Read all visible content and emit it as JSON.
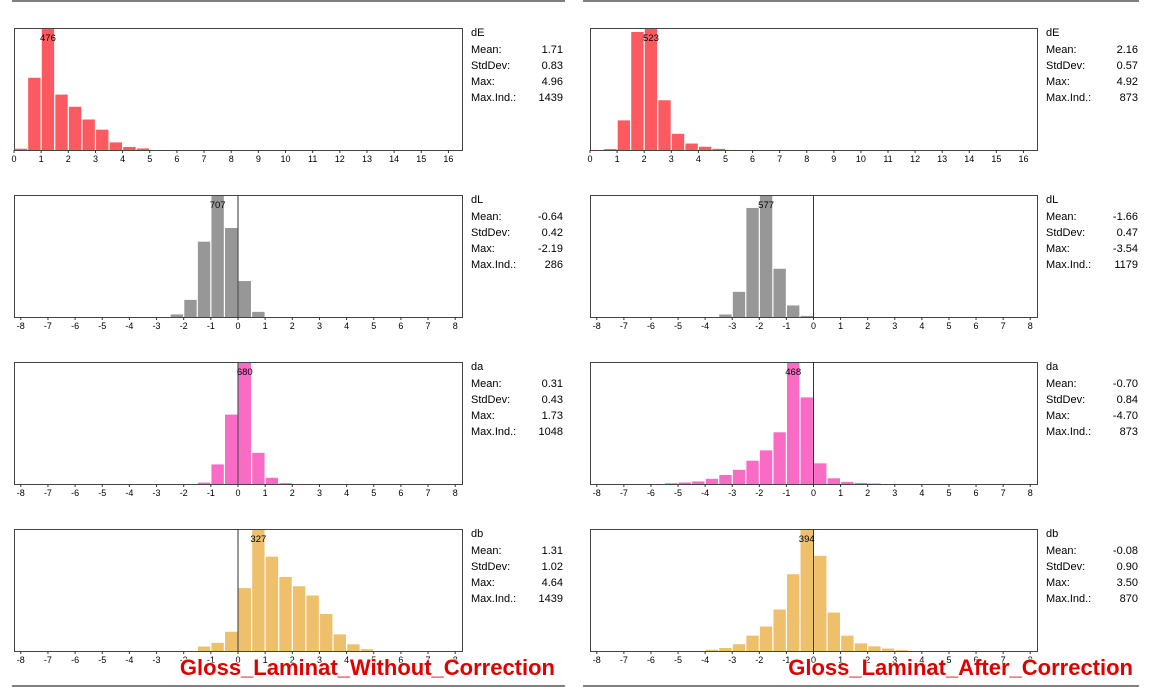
{
  "captions": {
    "left": "Gloss_Laminat_Without_Correction",
    "right": "Gloss_Laminat_After_Correction"
  },
  "colors": {
    "dE": "#fc5a60",
    "dL": "#979797",
    "da": "#f96bc4",
    "db": "#eec06c",
    "frame": "#444444",
    "text": "#000000",
    "caption": "#e00000"
  },
  "stat_labels": [
    "Mean:",
    "StdDev:",
    "Max:",
    "Max.Ind.:"
  ],
  "chart_data": [
    {
      "type": "bar",
      "panel": "left",
      "title": "dE",
      "stats": {
        "Mean": "1.71",
        "StdDev": "0.83",
        "Max": "4.96",
        "Max.Ind.": "1439"
      },
      "peak_label": "476",
      "xlim": [
        0,
        16.5
      ],
      "xticks": [
        0,
        1,
        2,
        3,
        4,
        5,
        6,
        7,
        8,
        9,
        10,
        11,
        12,
        13,
        14,
        15,
        16
      ],
      "ylim": [
        0,
        476
      ],
      "bin_width": 0.5,
      "zero_line": false,
      "x": [
        0.25,
        0.75,
        1.25,
        1.75,
        2.25,
        2.75,
        3.25,
        3.75,
        4.25,
        4.75
      ],
      "values": [
        5,
        284,
        476,
        218,
        170,
        120,
        80,
        30,
        12,
        6
      ]
    },
    {
      "type": "bar",
      "panel": "right",
      "title": "dE",
      "stats": {
        "Mean": "2.16",
        "StdDev": "0.57",
        "Max": "4.92",
        "Max.Ind.": "873"
      },
      "peak_label": "523",
      "xlim": [
        0,
        16.5
      ],
      "xticks": [
        0,
        1,
        2,
        3,
        4,
        5,
        6,
        7,
        8,
        9,
        10,
        11,
        12,
        13,
        14,
        15,
        16
      ],
      "ylim": [
        0,
        523
      ],
      "bin_width": 0.5,
      "zero_line": false,
      "x": [
        0.75,
        1.25,
        1.75,
        2.25,
        2.75,
        3.25,
        3.75,
        4.25,
        4.75
      ],
      "values": [
        4,
        128,
        510,
        523,
        215,
        70,
        28,
        14,
        5
      ]
    },
    {
      "type": "bar",
      "panel": "left",
      "title": "dL",
      "stats": {
        "Mean": "-0.64",
        "StdDev": "0.42",
        "Max": "-2.19",
        "Max.Ind.": "286"
      },
      "peak_label": "707",
      "xlim": [
        -8.25,
        8.25
      ],
      "xticks": [
        -8,
        -7,
        -6,
        -5,
        -4,
        -3,
        -2,
        -1,
        0,
        1,
        2,
        3,
        4,
        5,
        6,
        7,
        8
      ],
      "ylim": [
        0,
        707
      ],
      "bin_width": 0.5,
      "zero_line": true,
      "x": [
        -2.25,
        -1.75,
        -1.25,
        -0.75,
        -0.25,
        0.25,
        0.75
      ],
      "values": [
        15,
        100,
        440,
        707,
        520,
        210,
        30
      ]
    },
    {
      "type": "bar",
      "panel": "right",
      "title": "dL",
      "stats": {
        "Mean": "-1.66",
        "StdDev": "0.47",
        "Max": "-3.54",
        "Max.Ind.": "1179"
      },
      "peak_label": "577",
      "xlim": [
        -8.25,
        8.25
      ],
      "xticks": [
        -8,
        -7,
        -6,
        -5,
        -4,
        -3,
        -2,
        -1,
        0,
        1,
        2,
        3,
        4,
        5,
        6,
        7,
        8
      ],
      "ylim": [
        0,
        577
      ],
      "bin_width": 0.5,
      "zero_line": true,
      "x": [
        -3.25,
        -2.75,
        -2.25,
        -1.75,
        -1.25,
        -0.75,
        -0.25
      ],
      "values": [
        12,
        120,
        520,
        577,
        230,
        55,
        5
      ]
    },
    {
      "type": "bar",
      "panel": "left",
      "title": "da",
      "stats": {
        "Mean": "0.31",
        "StdDev": "0.43",
        "Max": "1.73",
        "Max.Ind.": "1048"
      },
      "peak_label": "680",
      "xlim": [
        -8.25,
        8.25
      ],
      "xticks": [
        -8,
        -7,
        -6,
        -5,
        -4,
        -3,
        -2,
        -1,
        0,
        1,
        2,
        3,
        4,
        5,
        6,
        7,
        8
      ],
      "ylim": [
        0,
        680
      ],
      "bin_width": 0.5,
      "zero_line": true,
      "x": [
        -1.25,
        -0.75,
        -0.25,
        0.25,
        0.75,
        1.25,
        1.75
      ],
      "values": [
        8,
        110,
        390,
        680,
        175,
        35,
        5
      ]
    },
    {
      "type": "bar",
      "panel": "right",
      "title": "da",
      "stats": {
        "Mean": "-0.70",
        "StdDev": "0.84",
        "Max": "-4.70",
        "Max.Ind.": "873"
      },
      "peak_label": "468",
      "xlim": [
        -8.25,
        8.25
      ],
      "xticks": [
        -8,
        -7,
        -6,
        -5,
        -4,
        -3,
        -2,
        -1,
        0,
        1,
        2,
        3,
        4,
        5,
        6,
        7,
        8
      ],
      "ylim": [
        0,
        468
      ],
      "bin_width": 0.5,
      "zero_line": true,
      "x": [
        -5.25,
        -4.75,
        -4.25,
        -3.75,
        -3.25,
        -2.75,
        -2.25,
        -1.75,
        -1.25,
        -0.75,
        -0.25,
        0.25,
        0.75,
        1.25,
        1.75,
        2.25
      ],
      "values": [
        3,
        6,
        10,
        20,
        35,
        55,
        90,
        130,
        200,
        468,
        335,
        80,
        22,
        8,
        4,
        2
      ]
    },
    {
      "type": "bar",
      "panel": "left",
      "title": "db",
      "stats": {
        "Mean": "1.31",
        "StdDev": "1.02",
        "Max": "4.64",
        "Max.Ind.": "1439"
      },
      "peak_label": "327",
      "xlim": [
        -8.25,
        8.25
      ],
      "xticks": [
        -8,
        -7,
        -6,
        -5,
        -4,
        -3,
        -2,
        -1,
        0,
        1,
        2,
        3,
        4,
        5,
        6,
        7,
        8
      ],
      "ylim": [
        0,
        327
      ],
      "bin_width": 0.5,
      "zero_line": true,
      "x": [
        -1.25,
        -0.75,
        -0.25,
        0.25,
        0.75,
        1.25,
        1.75,
        2.25,
        2.75,
        3.25,
        3.75,
        4.25,
        4.75
      ],
      "values": [
        12,
        22,
        52,
        170,
        327,
        255,
        200,
        175,
        150,
        100,
        45,
        18,
        5
      ]
    },
    {
      "type": "bar",
      "panel": "right",
      "title": "db",
      "stats": {
        "Mean": "-0.08",
        "StdDev": "0.90",
        "Max": "3.50",
        "Max.Ind.": "870"
      },
      "peak_label": "394",
      "xlim": [
        -8.25,
        8.25
      ],
      "xticks": [
        -8,
        -7,
        -6,
        -5,
        -4,
        -3,
        -2,
        -1,
        0,
        1,
        2,
        3,
        4,
        5,
        6,
        7,
        8
      ],
      "ylim": [
        0,
        394
      ],
      "bin_width": 0.5,
      "zero_line": true,
      "x": [
        -3.75,
        -3.25,
        -2.75,
        -2.25,
        -1.75,
        -1.25,
        -0.75,
        -0.25,
        0.25,
        0.75,
        1.25,
        1.75,
        2.25,
        2.75,
        3.25
      ],
      "values": [
        4,
        10,
        22,
        50,
        80,
        135,
        250,
        394,
        310,
        125,
        50,
        25,
        15,
        8,
        3
      ]
    }
  ]
}
